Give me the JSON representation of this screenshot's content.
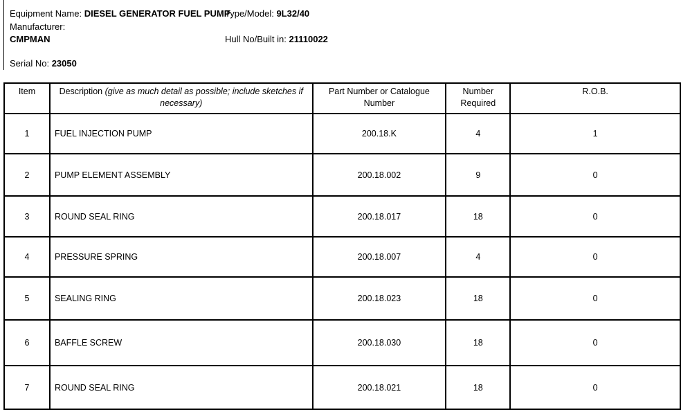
{
  "header": {
    "equipment_label": "Equipment Name:",
    "equipment_value": "DIESEL GENERATOR FUEL PUMP",
    "type_label": "Type/Model:",
    "type_value": "9L32/40",
    "manufacturer_label": "Manufacturer:",
    "manufacturer_value": "CMPMAN",
    "hull_label": "Hull No/Built in:",
    "hull_value": "21110022",
    "serial_label": "Serial No:",
    "serial_value": "23050"
  },
  "table": {
    "columns": {
      "item": "Item",
      "description": "Description",
      "description_note": "(give as much detail as possible; include sketches if necessary)",
      "part": "Part Number or Catalogue Number",
      "required": "Number Required",
      "rob": "R.O.B."
    },
    "rows": [
      {
        "item": "1",
        "description": "FUEL INJECTION PUMP",
        "part": "200.18.K",
        "required": "4",
        "rob": "1"
      },
      {
        "item": "2",
        "description": "PUMP ELEMENT ASSEMBLY",
        "part": "200.18.002",
        "required": "9",
        "rob": "0"
      },
      {
        "item": "3",
        "description": "ROUND SEAL RING",
        "part": "200.18.017",
        "required": "18",
        "rob": "0"
      },
      {
        "item": "4",
        "description": "PRESSURE SPRING",
        "part": "200.18.007",
        "required": "4",
        "rob": "0"
      },
      {
        "item": "5",
        "description": "SEALING RING",
        "part": "200.18.023",
        "required": "18",
        "rob": "0"
      },
      {
        "item": "6",
        "description": "BAFFLE SCREW",
        "part": "200.18.030",
        "required": "18",
        "rob": "0"
      },
      {
        "item": "7",
        "description": "ROUND SEAL RING",
        "part": "200.18.021",
        "required": "18",
        "rob": "0"
      }
    ]
  }
}
